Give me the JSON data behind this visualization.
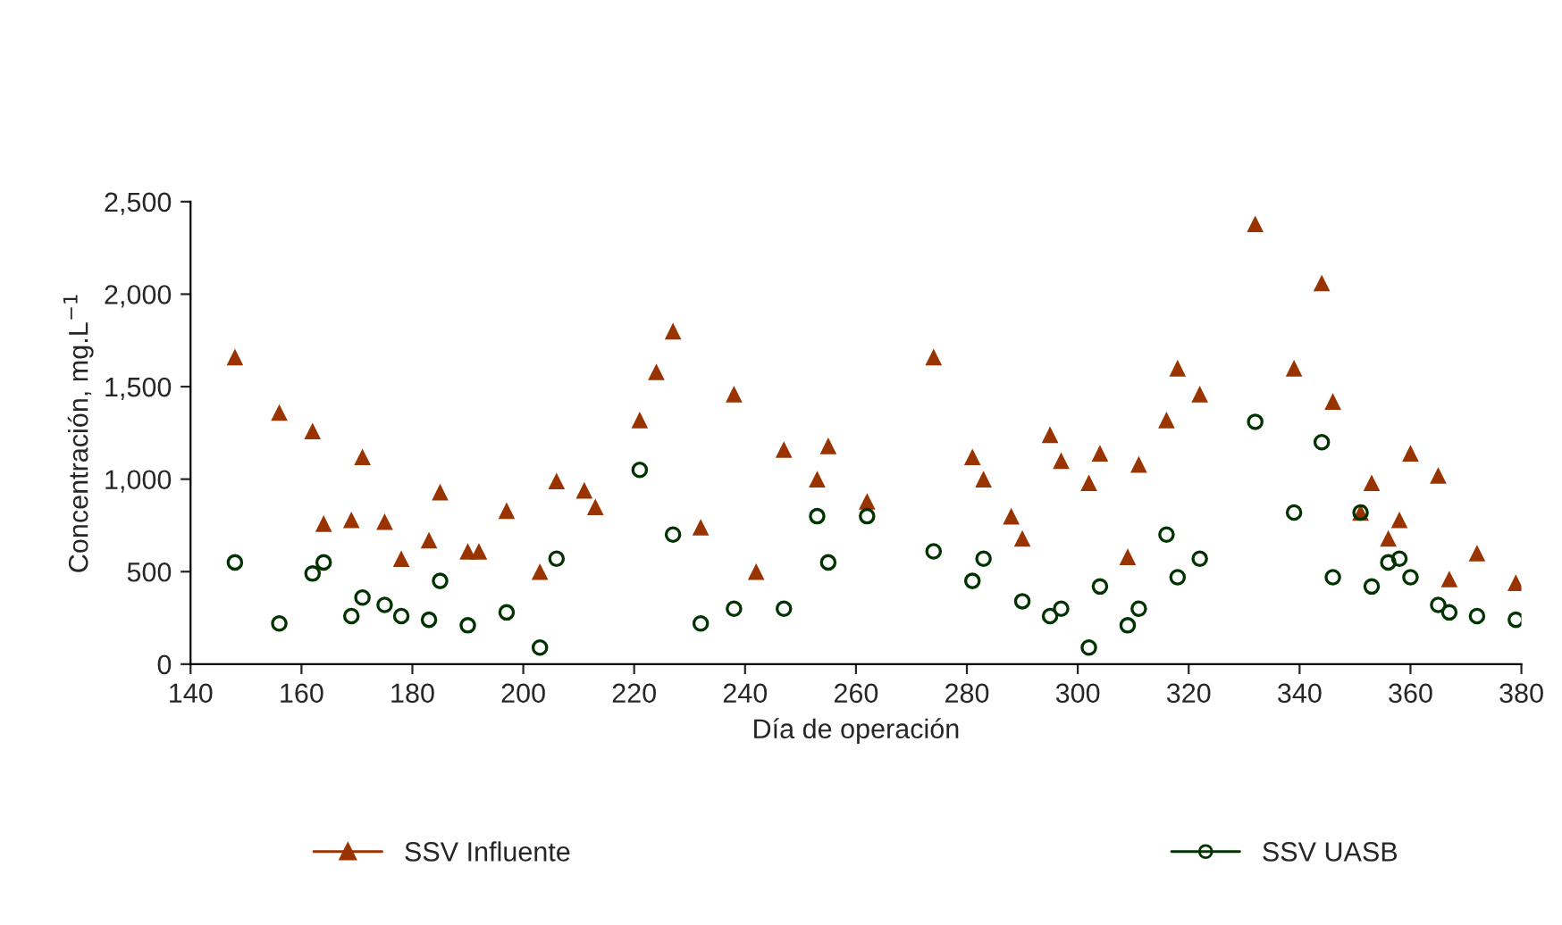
{
  "chart_data": {
    "type": "scatter",
    "xlabel": "Día de operación",
    "ylabel": "Concentración, mg.L$^{−1}$",
    "xlim": [
      140,
      380
    ],
    "xticks": [
      140,
      160,
      180,
      200,
      220,
      240,
      260,
      280,
      300,
      320,
      340,
      360,
      380
    ],
    "ylim": [
      0,
      2500
    ],
    "yticks": [
      {
        "value": 0,
        "label": "0"
      },
      {
        "value": 500,
        "label": "500"
      },
      {
        "value": 1000,
        "label": "1,000"
      },
      {
        "value": 1500,
        "label": "1,500"
      },
      {
        "value": 2000,
        "label": "2,000"
      },
      {
        "value": 2500,
        "label": "2,500"
      }
    ],
    "grid": false,
    "legend": "bottom",
    "series": [
      {
        "name": "SSV Influente",
        "color": "#993300",
        "marker": "triangle",
        "x": [
          148,
          156,
          162,
          164,
          169,
          171,
          175,
          178,
          183,
          185,
          190,
          192,
          197,
          203,
          206,
          211,
          213,
          221,
          224,
          227,
          232,
          238,
          242,
          247,
          253,
          255,
          262,
          274,
          281,
          283,
          288,
          290,
          295,
          297,
          302,
          304,
          309,
          311,
          316,
          318,
          322,
          332,
          339,
          344,
          346,
          351,
          353,
          356,
          358,
          360,
          365,
          367,
          372,
          379
        ],
        "values": [
          1660,
          1360,
          1260,
          760,
          780,
          1120,
          770,
          570,
          670,
          930,
          610,
          610,
          830,
          500,
          990,
          940,
          850,
          1320,
          1580,
          1800,
          740,
          1460,
          500,
          1160,
          1000,
          1180,
          880,
          1660,
          1120,
          1000,
          800,
          680,
          1240,
          1100,
          980,
          1140,
          580,
          1080,
          1320,
          1600,
          1460,
          2380,
          1600,
          2060,
          1420,
          820,
          980,
          680,
          780,
          1140,
          1020,
          460,
          600,
          440
        ]
      },
      {
        "name": "SSV UASB",
        "color": "#003300",
        "marker": "circle",
        "x": [
          148,
          156,
          162,
          164,
          169,
          171,
          175,
          178,
          183,
          185,
          190,
          197,
          203,
          206,
          221,
          227,
          232,
          238,
          247,
          253,
          255,
          262,
          274,
          281,
          283,
          290,
          295,
          297,
          302,
          304,
          309,
          311,
          316,
          318,
          322,
          332,
          339,
          344,
          346,
          351,
          353,
          356,
          358,
          360,
          365,
          367,
          372,
          379
        ],
        "values": [
          550,
          220,
          490,
          550,
          260,
          360,
          320,
          260,
          240,
          450,
          210,
          280,
          90,
          570,
          1050,
          700,
          220,
          300,
          300,
          800,
          550,
          800,
          610,
          450,
          570,
          340,
          260,
          300,
          90,
          420,
          210,
          300,
          700,
          470,
          570,
          1310,
          820,
          1200,
          470,
          820,
          420,
          550,
          570,
          470,
          320,
          280,
          260,
          240
        ]
      }
    ]
  }
}
